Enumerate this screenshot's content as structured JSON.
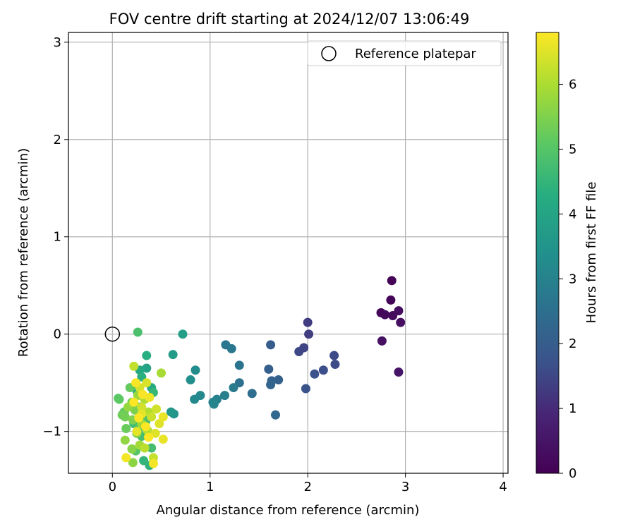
{
  "chart_data": {
    "type": "scatter",
    "title": "FOV centre drift starting at 2024/12/07 13:06:49",
    "xlabel": "Angular distance from reference (arcmin)",
    "ylabel": "Rotation from reference (arcmin)",
    "xlim": [
      -0.45,
      4.05
    ],
    "ylim": [
      -1.43,
      3.1
    ],
    "xticks": [
      0,
      1,
      2,
      3,
      4
    ],
    "yticks": [
      -1,
      0,
      1,
      2,
      3
    ],
    "grid": true,
    "legend": {
      "location": "upper-right",
      "entries": [
        {
          "label": "Reference platepar",
          "marker": "open-circle"
        }
      ]
    },
    "reference_point": {
      "x": 0,
      "y": 0
    },
    "colorbar": {
      "label": "Hours from first FF file",
      "min": 0,
      "max": 6.8,
      "ticks": [
        0,
        1,
        2,
        3,
        4,
        5,
        6
      ],
      "colormap": "viridis"
    },
    "series": [
      {
        "color_by": "hours",
        "points": [
          {
            "x": 2.86,
            "y": 0.55,
            "h": 0.05
          },
          {
            "x": 2.85,
            "y": 0.35,
            "h": 0.1
          },
          {
            "x": 2.75,
            "y": 0.22,
            "h": 0.15
          },
          {
            "x": 2.79,
            "y": 0.2,
            "h": 0.2
          },
          {
            "x": 2.87,
            "y": 0.19,
            "h": 0.25
          },
          {
            "x": 2.93,
            "y": 0.24,
            "h": 0.3
          },
          {
            "x": 2.95,
            "y": 0.12,
            "h": 0.35
          },
          {
            "x": 2.76,
            "y": -0.07,
            "h": 0.4
          },
          {
            "x": 2.93,
            "y": -0.39,
            "h": 0.5
          },
          {
            "x": 2.0,
            "y": 0.12,
            "h": 1.3
          },
          {
            "x": 2.01,
            "y": 0.0,
            "h": 1.35
          },
          {
            "x": 1.96,
            "y": -0.14,
            "h": 1.45
          },
          {
            "x": 1.91,
            "y": -0.18,
            "h": 1.5
          },
          {
            "x": 2.27,
            "y": -0.22,
            "h": 1.55
          },
          {
            "x": 2.28,
            "y": -0.31,
            "h": 1.6
          },
          {
            "x": 2.16,
            "y": -0.37,
            "h": 1.65
          },
          {
            "x": 2.07,
            "y": -0.41,
            "h": 1.7
          },
          {
            "x": 1.98,
            "y": -0.56,
            "h": 1.75
          },
          {
            "x": 1.62,
            "y": -0.11,
            "h": 2.0
          },
          {
            "x": 1.6,
            "y": -0.36,
            "h": 2.05
          },
          {
            "x": 1.7,
            "y": -0.47,
            "h": 2.1
          },
          {
            "x": 1.63,
            "y": -0.48,
            "h": 2.15
          },
          {
            "x": 1.62,
            "y": -0.52,
            "h": 2.2
          },
          {
            "x": 1.67,
            "y": -0.83,
            "h": 2.3
          },
          {
            "x": 1.43,
            "y": -0.61,
            "h": 2.45
          },
          {
            "x": 1.3,
            "y": -0.5,
            "h": 2.55
          },
          {
            "x": 1.3,
            "y": -0.32,
            "h": 2.6
          },
          {
            "x": 1.16,
            "y": -0.11,
            "h": 2.7
          },
          {
            "x": 1.22,
            "y": -0.15,
            "h": 2.75
          },
          {
            "x": 1.24,
            "y": -0.55,
            "h": 2.8
          },
          {
            "x": 1.15,
            "y": -0.63,
            "h": 2.9
          },
          {
            "x": 1.07,
            "y": -0.67,
            "h": 2.95
          },
          {
            "x": 1.03,
            "y": -0.7,
            "h": 3.0
          },
          {
            "x": 1.04,
            "y": -0.72,
            "h": 3.05
          },
          {
            "x": 0.9,
            "y": -0.63,
            "h": 3.15
          },
          {
            "x": 0.84,
            "y": -0.67,
            "h": 3.2
          },
          {
            "x": 0.85,
            "y": -0.37,
            "h": 3.3
          },
          {
            "x": 0.8,
            "y": -0.47,
            "h": 3.35
          },
          {
            "x": 0.63,
            "y": -0.82,
            "h": 3.5
          },
          {
            "x": 0.6,
            "y": -0.8,
            "h": 3.6
          },
          {
            "x": 0.62,
            "y": -0.21,
            "h": 3.7
          },
          {
            "x": 0.72,
            "y": 0.0,
            "h": 3.8
          },
          {
            "x": 0.35,
            "y": -0.35,
            "h": 4.0
          },
          {
            "x": 0.28,
            "y": -0.37,
            "h": 4.1
          },
          {
            "x": 0.4,
            "y": -0.55,
            "h": 4.2
          },
          {
            "x": 0.35,
            "y": -0.22,
            "h": 4.3
          },
          {
            "x": 0.3,
            "y": -0.44,
            "h": 4.35
          },
          {
            "x": 0.25,
            "y": -0.58,
            "h": 4.4
          },
          {
            "x": 0.38,
            "y": -1.35,
            "h": 4.45
          },
          {
            "x": 0.32,
            "y": -1.3,
            "h": 4.5
          },
          {
            "x": 0.42,
            "y": -0.6,
            "h": 4.55
          },
          {
            "x": 0.28,
            "y": -0.75,
            "h": 4.6
          },
          {
            "x": 0.34,
            "y": -0.9,
            "h": 4.6
          },
          {
            "x": 0.22,
            "y": -0.92,
            "h": 4.7
          },
          {
            "x": 0.4,
            "y": -1.17,
            "h": 4.75
          },
          {
            "x": 0.3,
            "y": -1.05,
            "h": 4.8
          },
          {
            "x": 0.26,
            "y": 0.02,
            "h": 4.85
          },
          {
            "x": 0.27,
            "y": -0.97,
            "h": 4.9
          },
          {
            "x": 0.35,
            "y": -0.85,
            "h": 4.95
          },
          {
            "x": 0.24,
            "y": -1.2,
            "h": 5.0
          },
          {
            "x": 0.06,
            "y": -0.66,
            "h": 5.05
          },
          {
            "x": 0.07,
            "y": -0.67,
            "h": 5.1
          },
          {
            "x": 0.12,
            "y": -0.8,
            "h": 5.15
          },
          {
            "x": 0.18,
            "y": -0.55,
            "h": 5.2
          },
          {
            "x": 0.14,
            "y": -0.97,
            "h": 5.25
          },
          {
            "x": 0.1,
            "y": -0.83,
            "h": 5.3
          },
          {
            "x": 0.13,
            "y": -0.85,
            "h": 5.35
          },
          {
            "x": 0.2,
            "y": -0.7,
            "h": 5.4
          },
          {
            "x": 0.23,
            "y": -0.78,
            "h": 5.45
          },
          {
            "x": 0.21,
            "y": -0.88,
            "h": 5.5
          },
          {
            "x": 0.25,
            "y": -1.02,
            "h": 5.55
          },
          {
            "x": 0.2,
            "y": -1.18,
            "h": 5.6
          },
          {
            "x": 0.21,
            "y": -1.32,
            "h": 5.65
          },
          {
            "x": 0.13,
            "y": -1.09,
            "h": 5.7
          },
          {
            "x": 0.16,
            "y": -0.75,
            "h": 5.75
          },
          {
            "x": 0.26,
            "y": -0.63,
            "h": 5.8
          },
          {
            "x": 0.3,
            "y": -0.92,
            "h": 5.85
          },
          {
            "x": 0.28,
            "y": -1.14,
            "h": 5.9
          },
          {
            "x": 0.5,
            "y": -0.4,
            "h": 5.95
          },
          {
            "x": 0.33,
            "y": -0.67,
            "h": 6.0
          },
          {
            "x": 0.37,
            "y": -0.8,
            "h": 6.05
          },
          {
            "x": 0.36,
            "y": -0.99,
            "h": 6.1
          },
          {
            "x": 0.33,
            "y": -1.17,
            "h": 6.15
          },
          {
            "x": 0.22,
            "y": -0.33,
            "h": 6.2
          },
          {
            "x": 0.42,
            "y": -1.27,
            "h": 6.25
          },
          {
            "x": 0.4,
            "y": -0.85,
            "h": 6.3
          },
          {
            "x": 0.45,
            "y": -0.77,
            "h": 6.35
          },
          {
            "x": 0.3,
            "y": -0.75,
            "h": 6.35
          },
          {
            "x": 0.28,
            "y": -0.55,
            "h": 6.4
          },
          {
            "x": 0.35,
            "y": -0.5,
            "h": 6.45
          },
          {
            "x": 0.48,
            "y": -0.92,
            "h": 6.5
          },
          {
            "x": 0.44,
            "y": -1.02,
            "h": 6.5
          },
          {
            "x": 0.25,
            "y": -1.0,
            "h": 6.55
          },
          {
            "x": 0.3,
            "y": -0.82,
            "h": 6.55
          },
          {
            "x": 0.52,
            "y": -1.08,
            "h": 6.6
          },
          {
            "x": 0.52,
            "y": -0.85,
            "h": 6.6
          },
          {
            "x": 0.38,
            "y": -0.65,
            "h": 6.65
          },
          {
            "x": 0.42,
            "y": -1.33,
            "h": 6.7
          },
          {
            "x": 0.14,
            "y": -1.27,
            "h": 6.7
          },
          {
            "x": 0.24,
            "y": -0.5,
            "h": 6.75
          },
          {
            "x": 0.31,
            "y": -0.62,
            "h": 6.75
          },
          {
            "x": 0.37,
            "y": -1.06,
            "h": 6.8
          },
          {
            "x": 0.22,
            "y": -0.7,
            "h": 6.8
          },
          {
            "x": 0.34,
            "y": -0.95,
            "h": 6.8
          },
          {
            "x": 0.27,
            "y": -0.86,
            "h": 6.8
          }
        ]
      }
    ]
  }
}
